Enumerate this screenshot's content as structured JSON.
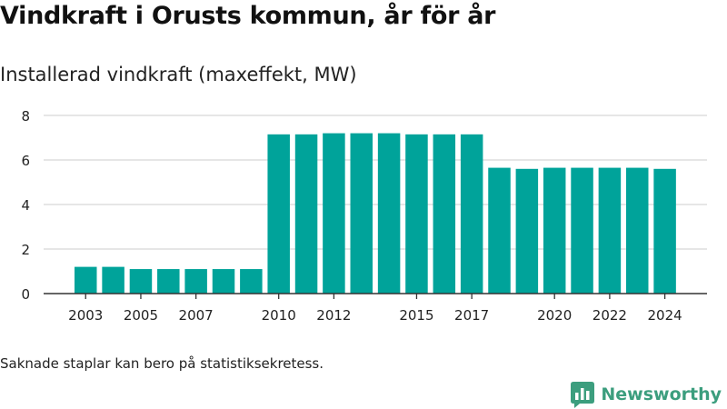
{
  "colors": {
    "bar": "#00a39a",
    "grid": "#dddddd",
    "axis": "#333333",
    "text": "#222222",
    "brand": "#3c9e7e"
  },
  "chart_data": {
    "type": "bar",
    "title": "Vindkraft i Orusts kommun, år för år",
    "subtitle": "Installerad vindkraft (maxeffekt, MW)",
    "xlabel": "",
    "ylabel": "",
    "categories": [
      "2003",
      "2004",
      "2005",
      "2006",
      "2007",
      "2008",
      "2009",
      "2010",
      "2011",
      "2012",
      "2013",
      "2014",
      "2015",
      "2016",
      "2017",
      "2018",
      "2019",
      "2020",
      "2021",
      "2022",
      "2023",
      "2024"
    ],
    "values": [
      1.2,
      1.2,
      1.1,
      1.1,
      1.1,
      1.1,
      1.1,
      7.15,
      7.15,
      7.2,
      7.2,
      7.2,
      7.15,
      7.15,
      7.15,
      5.65,
      5.6,
      5.65,
      5.65,
      5.65,
      5.65,
      5.6
    ],
    "x_tick_labels": [
      "2003",
      "2005",
      "2007",
      "2010",
      "2012",
      "2015",
      "2017",
      "2020",
      "2022",
      "2024"
    ],
    "y_ticks": [
      "0",
      "2",
      "4",
      "6",
      "8"
    ],
    "ylim": [
      0,
      8
    ],
    "grid": "horizontal",
    "legend": "none"
  },
  "footnote": "Saknade staplar kan bero på statistiksekretess.",
  "brand": {
    "name": "Newsworthy",
    "icon": "newsworthy-logo-icon"
  }
}
